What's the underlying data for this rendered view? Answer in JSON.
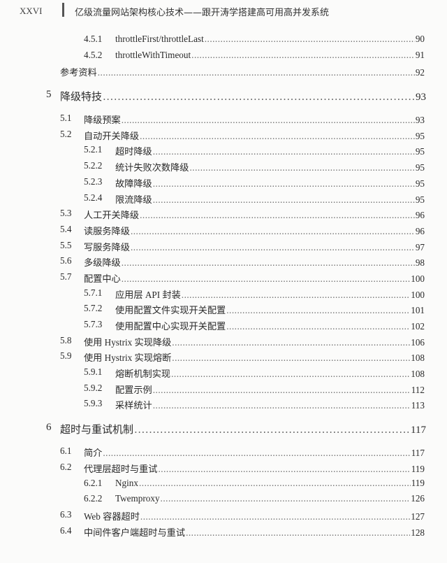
{
  "header": {
    "page_number": "XXVI",
    "book_title": "亿级流量网站架构核心技术——跟开涛学搭建高可用高并发系统"
  },
  "toc": [
    {
      "level": 2,
      "num": "4.5.1",
      "title": "throttleFirst/throttleLast",
      "page": "90"
    },
    {
      "level": 2,
      "num": "4.5.2",
      "title": "throttleWithTimeout",
      "page": "91"
    },
    {
      "level": 0,
      "num": "",
      "title": "参考资料",
      "page": "92"
    },
    {
      "level": "chapter",
      "num": "5",
      "title": "降级特技",
      "page": "93"
    },
    {
      "level": 1,
      "num": "5.1",
      "title": "降级预案",
      "page": "93"
    },
    {
      "level": 1,
      "num": "5.2",
      "title": "自动开关降级",
      "page": "95"
    },
    {
      "level": 2,
      "num": "5.2.1",
      "title": "超时降级",
      "page": "95"
    },
    {
      "level": 2,
      "num": "5.2.2",
      "title": "统计失败次数降级",
      "page": "95"
    },
    {
      "level": 2,
      "num": "5.2.3",
      "title": "故障降级",
      "page": "95"
    },
    {
      "level": 2,
      "num": "5.2.4",
      "title": "限流降级",
      "page": "95"
    },
    {
      "level": 1,
      "num": "5.3",
      "title": "人工开关降级",
      "page": "96"
    },
    {
      "level": 1,
      "num": "5.4",
      "title": "读服务降级",
      "page": "96"
    },
    {
      "level": 1,
      "num": "5.5",
      "title": "写服务降级",
      "page": "97"
    },
    {
      "level": 1,
      "num": "5.6",
      "title": "多级降级",
      "page": "98"
    },
    {
      "level": 1,
      "num": "5.7",
      "title": "配置中心",
      "page": "100"
    },
    {
      "level": 2,
      "num": "5.7.1",
      "title": "应用层 API 封装",
      "page": "100"
    },
    {
      "level": 2,
      "num": "5.7.2",
      "title": "使用配置文件实现开关配置",
      "page": "101"
    },
    {
      "level": 2,
      "num": "5.7.3",
      "title": "使用配置中心实现开关配置",
      "page": "102"
    },
    {
      "level": 1,
      "num": "5.8",
      "title": "使用 Hystrix 实现降级",
      "page": "106"
    },
    {
      "level": 1,
      "num": "5.9",
      "title": "使用 Hystrix 实现熔断",
      "page": "108"
    },
    {
      "level": 2,
      "num": "5.9.1",
      "title": "熔断机制实现",
      "page": "108"
    },
    {
      "level": 2,
      "num": "5.9.2",
      "title": "配置示例",
      "page": "112"
    },
    {
      "level": 2,
      "num": "5.9.3",
      "title": "采样统计",
      "page": "113"
    },
    {
      "level": "chapter",
      "num": "6",
      "title": "超时与重试机制",
      "page": "117"
    },
    {
      "level": 1,
      "num": "6.1",
      "title": "简介",
      "page": "117"
    },
    {
      "level": 1,
      "num": "6.2",
      "title": "代理层超时与重试",
      "page": "119"
    },
    {
      "level": 2,
      "num": "6.2.1",
      "title": "Nginx",
      "page": "119"
    },
    {
      "level": 2,
      "num": "6.2.2",
      "title": "Twemproxy",
      "page": "126"
    },
    {
      "level": 1,
      "num": "6.3",
      "title": "Web 容器超时",
      "page": "127"
    },
    {
      "level": 1,
      "num": "6.4",
      "title": "中间件客户端超时与重试",
      "page": "128"
    }
  ]
}
